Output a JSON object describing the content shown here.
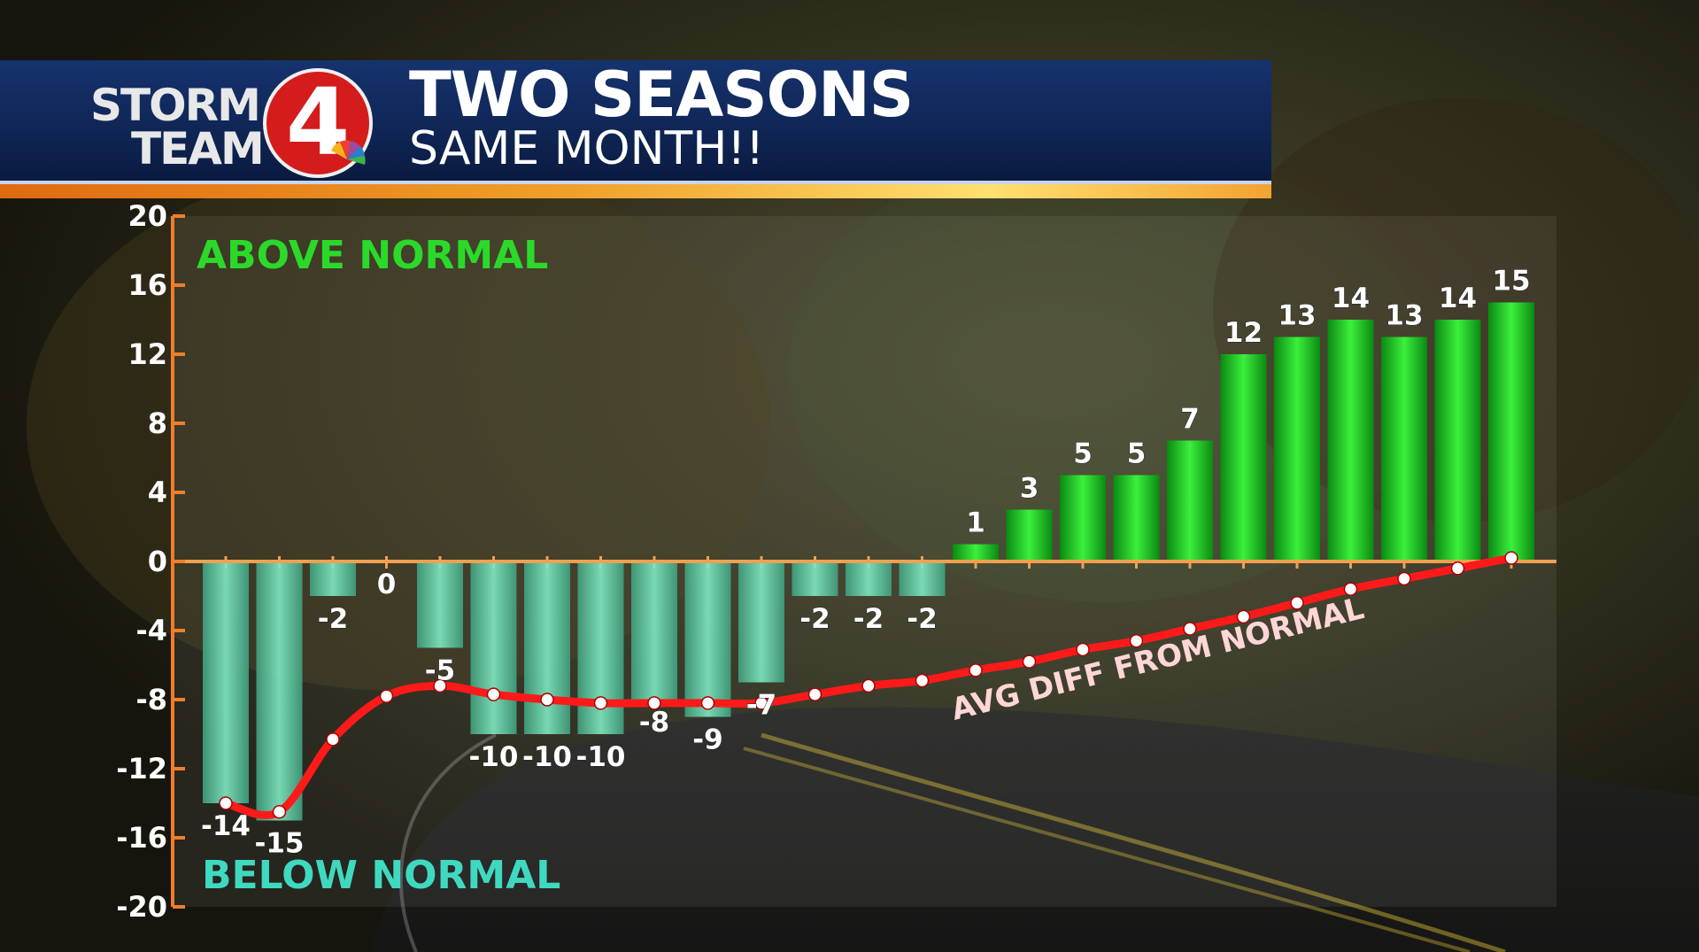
{
  "header": {
    "logo_line1": "STORM",
    "logo_line2": "TEAM",
    "logo_number": "4",
    "title": "TWO SEASONS",
    "subtitle": "SAME MONTH!!"
  },
  "colors": {
    "header_blue": "#0f2656",
    "stripe_orange": "#f0922a",
    "axis_orange": "#f07d2a",
    "above_green": "#22c422",
    "below_teal": "#4fc6a0",
    "line_red": "#ff1a1a",
    "above_label": "#2bd92b",
    "below_label": "#3fd9c0"
  },
  "chart_data": {
    "type": "bar",
    "annotations": {
      "above": "ABOVE NORMAL",
      "below": "BELOW NORMAL",
      "line": "AVG DIFF FROM NORMAL"
    },
    "y_ticks": [
      "20",
      "16",
      "12",
      "8",
      "4",
      "0",
      "-4",
      "-8",
      "-12",
      "-16",
      "-20"
    ],
    "ylim": [
      -20,
      20
    ],
    "grid": false,
    "values": [
      -14,
      -15,
      -2,
      0,
      -5,
      -10,
      -10,
      -10,
      -8,
      -9,
      -7,
      -2,
      -2,
      -2,
      1,
      3,
      5,
      5,
      7,
      12,
      13,
      14,
      13,
      14,
      15
    ],
    "value_labels": [
      "-14",
      "-15",
      "-2",
      "0",
      "-5",
      "-10",
      "-10",
      "-10",
      "-8",
      "-9",
      "-7",
      "-2",
      "-2",
      "-2",
      "1",
      "3",
      "5",
      "5",
      "7",
      "12",
      "13",
      "14",
      "13",
      "14",
      "15"
    ],
    "series": [
      {
        "type": "line",
        "values": [
          -14.0,
          -14.5,
          -10.3,
          -7.8,
          -7.2,
          -7.7,
          -8.0,
          -8.2,
          -8.2,
          -8.2,
          -8.2,
          -7.7,
          -7.2,
          -6.9,
          -6.3,
          -5.8,
          -5.1,
          -4.6,
          -3.9,
          -3.2,
          -2.4,
          -1.6,
          -1.0,
          -0.4,
          0.2
        ]
      }
    ]
  }
}
